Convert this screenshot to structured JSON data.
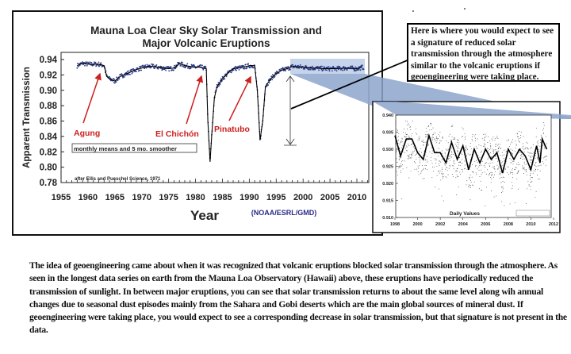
{
  "chart_data": [
    {
      "type": "scatter",
      "title": "Mauna Loa Clear Sky Solar Transmission and Major Volcanic Eruptions",
      "title_lines": [
        "Mauna Loa Clear Sky Solar Transmission and",
        "Major Volcanic Eruptions"
      ],
      "xlabel": "Year",
      "ylabel": "Apparent Transmission",
      "xlim": [
        1955,
        2012
      ],
      "ylim": [
        0.78,
        0.94
      ],
      "xticks": [
        "1955",
        "1960",
        "1965",
        "1970",
        "1975",
        "1980",
        "1985",
        "1990",
        "1995",
        "2000",
        "2005",
        "2010"
      ],
      "yticks": [
        "0.94",
        "0.92",
        "0.90",
        "0.88",
        "0.86",
        "0.84",
        "0.82",
        "0.80",
        "0.78"
      ],
      "grid": false,
      "source": "(NOAA/ESRL/GMD)",
      "legend_note": "monthly means and 5 mo. smoother",
      "credit": "after Ellis and Pueschel Science, 1971",
      "colors": {
        "points": "#2b3a8a",
        "smoother": "#000000",
        "annotations": "#cc1f1f",
        "highlight": "#b7c8e6"
      },
      "annotations": [
        {
          "label": "Agung",
          "year": 1963
        },
        {
          "label": "El Chichón",
          "year": 1982
        },
        {
          "label": "Pinatubo",
          "year": 1991
        }
      ],
      "smoother": {
        "x": [
          1958,
          1959,
          1960,
          1961,
          1962,
          1963,
          1963.5,
          1964,
          1965,
          1966,
          1967,
          1968,
          1969,
          1970,
          1971,
          1972,
          1973,
          1974,
          1975,
          1976,
          1977,
          1978,
          1979,
          1980,
          1981,
          1982,
          1982.3,
          1982.7,
          1983,
          1983.5,
          1984,
          1985,
          1986,
          1987,
          1988,
          1989,
          1990,
          1991,
          1991.5,
          1992,
          1992.5,
          1993,
          1994,
          1995,
          1996,
          1997,
          1998,
          2000,
          2002,
          2004,
          2006,
          2008,
          2010,
          2011
        ],
        "y": [
          0.932,
          0.935,
          0.934,
          0.934,
          0.934,
          0.932,
          0.918,
          0.915,
          0.912,
          0.918,
          0.921,
          0.924,
          0.927,
          0.929,
          0.931,
          0.931,
          0.93,
          0.929,
          0.928,
          0.929,
          0.935,
          0.932,
          0.931,
          0.93,
          0.93,
          0.928,
          0.86,
          0.807,
          0.84,
          0.89,
          0.905,
          0.915,
          0.922,
          0.928,
          0.929,
          0.93,
          0.932,
          0.932,
          0.9,
          0.835,
          0.86,
          0.905,
          0.915,
          0.922,
          0.926,
          0.928,
          0.931,
          0.93,
          0.929,
          0.928,
          0.928,
          0.929,
          0.928,
          0.93
        ]
      }
    },
    {
      "type": "scatter",
      "xlabel": "",
      "ylabel": "",
      "series_label": "Daily Values",
      "xlim": [
        1998,
        2012
      ],
      "ylim": [
        0.91,
        0.94
      ],
      "xticks": [
        "1998",
        "2000",
        "2002",
        "2004",
        "2006",
        "2008",
        "2010",
        "2012"
      ],
      "yticks": [
        "0.940",
        "0.935",
        "0.930",
        "0.925",
        "0.920",
        "0.915",
        "0.910"
      ],
      "grid": false,
      "smoother": {
        "x": [
          1998,
          1998.5,
          1999,
          1999.5,
          2000,
          2000.5,
          2001,
          2001.5,
          2002,
          2002.5,
          2003,
          2003.5,
          2004,
          2004.5,
          2005,
          2005.5,
          2006,
          2006.5,
          2007,
          2007.5,
          2008,
          2008.5,
          2009,
          2009.5,
          2010,
          2010.5,
          2010.8,
          2011,
          2011.4
        ],
        "y": [
          0.934,
          0.928,
          0.933,
          0.933,
          0.929,
          0.927,
          0.934,
          0.929,
          0.929,
          0.926,
          0.932,
          0.927,
          0.931,
          0.924,
          0.93,
          0.926,
          0.93,
          0.927,
          0.929,
          0.923,
          0.93,
          0.927,
          0.93,
          0.928,
          0.924,
          0.931,
          0.926,
          0.933,
          0.93
        ]
      }
    }
  ],
  "callout": {
    "text": "Here is where you would expect to see a signature of reduced solar transmission through the atmosphere similar to the volcanic eruptions if geoengineering were taking place."
  },
  "body_text": "The idea of geoengineering came about when it was recognized that volcanic eruptions blocked solar transmission through the atmosphere. As seen in the longest data series on earth from the Mauna Loa Observatory (Hawaii) above, these eruptions have periodically reduced the transmission of sunlight. In between major eruptions, you can see that solar transmission returns to about the same level along wih annual changes due to seasonal dust episodes mainly from the Sahara and Gobi deserts which are the main global sources of mineral dust. If geoengineering were taking place, you would expect to see a corresponding decrease in solar transmission, but that signature is not present in the data."
}
